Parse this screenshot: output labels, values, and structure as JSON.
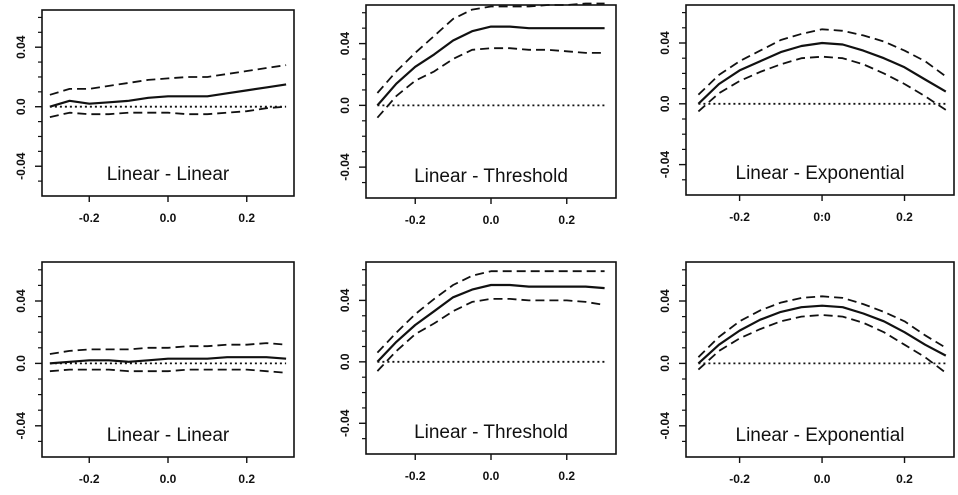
{
  "chart_data": [
    {
      "type": "line",
      "title": "Linear - Linear",
      "xlabel": "",
      "ylabel": "",
      "xlim": [
        -0.32,
        0.32
      ],
      "ylim": [
        -0.06,
        0.065
      ],
      "xticks": [
        "-0.2",
        "0.0",
        "0.2"
      ],
      "yticks": [
        "0.04",
        "0.0",
        "-0.04"
      ],
      "x": [
        -0.3,
        -0.25,
        -0.2,
        -0.15,
        -0.1,
        -0.05,
        0.0,
        0.05,
        0.1,
        0.15,
        0.2,
        0.25,
        0.3
      ],
      "series": [
        {
          "values": [
            0.0,
            0.004,
            0.002,
            0.003,
            0.004,
            0.006,
            0.007,
            0.007,
            0.007,
            0.009,
            0.011,
            0.013,
            0.015
          ],
          "style": "solid"
        },
        {
          "values": [
            0.008,
            0.012,
            0.012,
            0.014,
            0.016,
            0.018,
            0.019,
            0.02,
            0.02,
            0.022,
            0.024,
            0.026,
            0.028
          ],
          "style": "dashed"
        },
        {
          "values": [
            -0.007,
            -0.004,
            -0.005,
            -0.005,
            -0.004,
            -0.004,
            -0.004,
            -0.005,
            -0.005,
            -0.004,
            -0.003,
            -0.001,
            0.0
          ],
          "style": "dashed"
        },
        {
          "values": [
            0,
            0,
            0,
            0,
            0,
            0,
            0,
            0,
            0,
            0,
            0,
            0,
            0
          ],
          "style": "dotted"
        }
      ]
    },
    {
      "type": "line",
      "title": "Linear - Threshold",
      "xlabel": "",
      "ylabel": "",
      "xlim": [
        -0.33,
        0.33
      ],
      "ylim": [
        -0.06,
        0.065
      ],
      "xticks": [
        "-0.2",
        "0.0",
        "0.2"
      ],
      "yticks": [
        "0.04",
        "0.0",
        "-0.04"
      ],
      "x": [
        -0.3,
        -0.25,
        -0.2,
        -0.15,
        -0.1,
        -0.05,
        0.0,
        0.05,
        0.1,
        0.15,
        0.2,
        0.25,
        0.3
      ],
      "series": [
        {
          "values": [
            0.0,
            0.014,
            0.025,
            0.033,
            0.042,
            0.048,
            0.051,
            0.051,
            0.05,
            0.05,
            0.05,
            0.05,
            0.05
          ],
          "style": "solid"
        },
        {
          "values": [
            0.008,
            0.022,
            0.034,
            0.045,
            0.056,
            0.062,
            0.064,
            0.064,
            0.064,
            0.065,
            0.065,
            0.066,
            0.066
          ],
          "style": "dashed"
        },
        {
          "values": [
            -0.008,
            0.006,
            0.016,
            0.022,
            0.03,
            0.036,
            0.037,
            0.037,
            0.036,
            0.036,
            0.035,
            0.034,
            0.034
          ],
          "style": "dashed"
        },
        {
          "values": [
            0,
            0,
            0,
            0,
            0,
            0,
            0,
            0,
            0,
            0,
            0,
            0,
            0
          ],
          "style": "dotted"
        }
      ]
    },
    {
      "type": "line",
      "title": "Linear - Exponential",
      "xlabel": "",
      "ylabel": "",
      "xlim": [
        -0.33,
        0.32
      ],
      "ylim": [
        -0.06,
        0.065
      ],
      "xticks": [
        "-0.2",
        "0:0",
        "0.2"
      ],
      "yticks": [
        "0.04",
        "0.0",
        "-0.04"
      ],
      "x": [
        -0.3,
        -0.25,
        -0.2,
        -0.15,
        -0.1,
        -0.05,
        0.0,
        0.05,
        0.1,
        0.15,
        0.2,
        0.25,
        0.3
      ],
      "series": [
        {
          "values": [
            0.0,
            0.013,
            0.022,
            0.028,
            0.034,
            0.038,
            0.04,
            0.039,
            0.035,
            0.03,
            0.024,
            0.016,
            0.008
          ],
          "style": "solid"
        },
        {
          "values": [
            0.006,
            0.019,
            0.028,
            0.035,
            0.042,
            0.046,
            0.049,
            0.048,
            0.045,
            0.041,
            0.035,
            0.028,
            0.018
          ],
          "style": "dashed"
        },
        {
          "values": [
            -0.005,
            0.007,
            0.015,
            0.021,
            0.026,
            0.03,
            0.031,
            0.03,
            0.026,
            0.02,
            0.013,
            0.005,
            -0.004
          ],
          "style": "dashed"
        },
        {
          "values": [
            0,
            0,
            0,
            0,
            0,
            0,
            0,
            0,
            0,
            0,
            0,
            0,
            0
          ],
          "style": "dotted"
        }
      ]
    },
    {
      "type": "line",
      "title": "Linear - Linear",
      "xlabel": "",
      "ylabel": "",
      "xlim": [
        -0.32,
        0.32
      ],
      "ylim": [
        -0.06,
        0.065
      ],
      "xticks": [
        "-0.2",
        "0.0",
        "0.2"
      ],
      "yticks": [
        "0.04",
        "0.0",
        "-0.04"
      ],
      "x": [
        -0.3,
        -0.25,
        -0.2,
        -0.15,
        -0.1,
        -0.05,
        0.0,
        0.05,
        0.1,
        0.15,
        0.2,
        0.25,
        0.3
      ],
      "series": [
        {
          "values": [
            0.0,
            0.001,
            0.002,
            0.002,
            0.001,
            0.002,
            0.003,
            0.003,
            0.003,
            0.004,
            0.004,
            0.004,
            0.003
          ],
          "style": "solid"
        },
        {
          "values": [
            0.006,
            0.008,
            0.009,
            0.009,
            0.009,
            0.01,
            0.01,
            0.011,
            0.011,
            0.012,
            0.012,
            0.013,
            0.012
          ],
          "style": "dashed"
        },
        {
          "values": [
            -0.005,
            -0.004,
            -0.004,
            -0.004,
            -0.005,
            -0.005,
            -0.005,
            -0.004,
            -0.004,
            -0.004,
            -0.004,
            -0.005,
            -0.006
          ],
          "style": "dashed"
        },
        {
          "values": [
            0,
            0,
            0,
            0,
            0,
            0,
            0,
            0,
            0,
            0,
            0,
            0,
            0
          ],
          "style": "dotted"
        }
      ]
    },
    {
      "type": "line",
      "title": "Linear - Threshold",
      "xlabel": "",
      "ylabel": "",
      "xlim": [
        -0.33,
        0.33
      ],
      "ylim": [
        -0.06,
        0.065
      ],
      "xticks": [
        "-0.2",
        "0.0",
        "0.2"
      ],
      "yticks": [
        "0.04",
        "0.0",
        "-0.04"
      ],
      "x": [
        -0.3,
        -0.25,
        -0.2,
        -0.15,
        -0.1,
        -0.05,
        0.0,
        0.05,
        0.1,
        0.15,
        0.2,
        0.25,
        0.3
      ],
      "series": [
        {
          "values": [
            0.0,
            0.013,
            0.024,
            0.033,
            0.042,
            0.047,
            0.05,
            0.05,
            0.049,
            0.049,
            0.049,
            0.049,
            0.048
          ],
          "style": "solid"
        },
        {
          "values": [
            0.006,
            0.019,
            0.031,
            0.041,
            0.05,
            0.056,
            0.059,
            0.059,
            0.059,
            0.059,
            0.059,
            0.059,
            0.059
          ],
          "style": "dashed"
        },
        {
          "values": [
            -0.006,
            0.007,
            0.018,
            0.025,
            0.033,
            0.039,
            0.041,
            0.041,
            0.04,
            0.04,
            0.04,
            0.039,
            0.037
          ],
          "style": "dashed"
        },
        {
          "values": [
            0,
            0,
            0,
            0,
            0,
            0,
            0,
            0,
            0,
            0,
            0,
            0,
            0
          ],
          "style": "dotted"
        }
      ]
    },
    {
      "type": "line",
      "title": "Linear - Exponential",
      "xlabel": "",
      "ylabel": "",
      "xlim": [
        -0.33,
        0.32
      ],
      "ylim": [
        -0.06,
        0.065
      ],
      "xticks": [
        "-0.2",
        "0.0",
        "0.2"
      ],
      "yticks": [
        "0.04",
        "0.0",
        "-0.04"
      ],
      "x": [
        -0.3,
        -0.25,
        -0.2,
        -0.15,
        -0.1,
        -0.05,
        0.0,
        0.05,
        0.1,
        0.15,
        0.2,
        0.25,
        0.3
      ],
      "series": [
        {
          "values": [
            0.0,
            0.012,
            0.021,
            0.028,
            0.033,
            0.036,
            0.037,
            0.036,
            0.032,
            0.027,
            0.02,
            0.012,
            0.005
          ],
          "style": "solid"
        },
        {
          "values": [
            0.004,
            0.017,
            0.027,
            0.034,
            0.039,
            0.042,
            0.043,
            0.042,
            0.038,
            0.033,
            0.027,
            0.018,
            0.01
          ],
          "style": "dashed"
        },
        {
          "values": [
            -0.004,
            0.008,
            0.016,
            0.022,
            0.027,
            0.03,
            0.031,
            0.03,
            0.026,
            0.02,
            0.012,
            0.004,
            -0.006
          ],
          "style": "dashed"
        },
        {
          "values": [
            0,
            0,
            0,
            0,
            0,
            0,
            0,
            0,
            0,
            0,
            0,
            0,
            0
          ],
          "style": "dotted"
        }
      ]
    }
  ]
}
